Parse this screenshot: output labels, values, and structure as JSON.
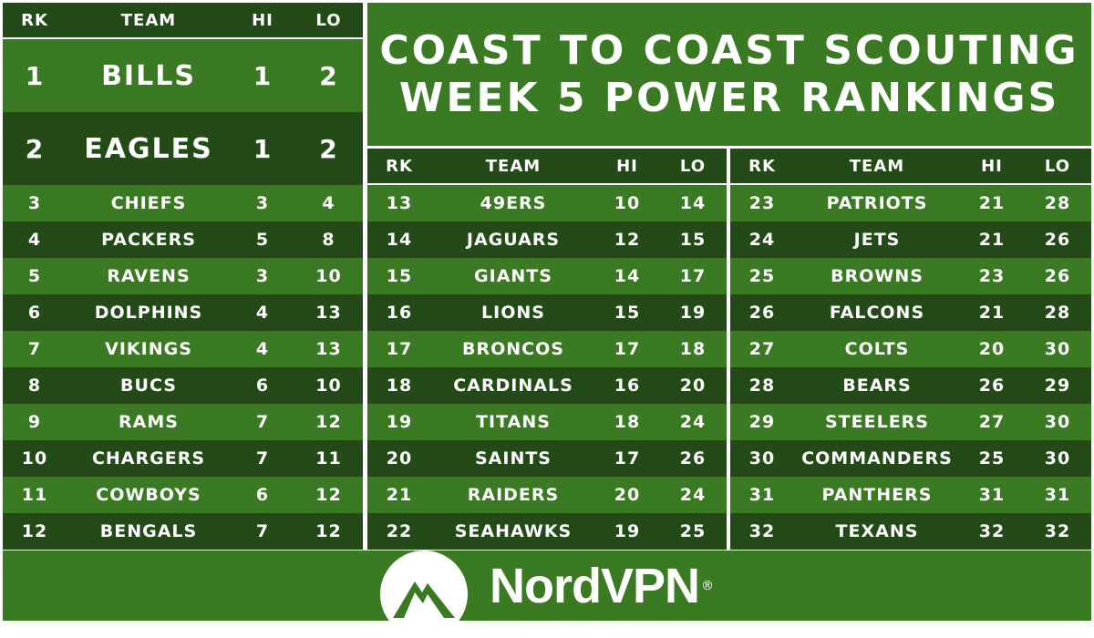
{
  "title": {
    "line1": "Coast to Coast Scouting",
    "line2": "Week 5 Power Rankings"
  },
  "columns": {
    "rank": "RK",
    "team": "TEAM",
    "hi": "HI",
    "lo": "LO"
  },
  "tables": [
    {
      "rows": [
        {
          "rk": "1",
          "team": "Bills",
          "hi": "1",
          "lo": "2"
        },
        {
          "rk": "2",
          "team": "Eagles",
          "hi": "1",
          "lo": "2"
        },
        {
          "rk": "3",
          "team": "Chiefs",
          "hi": "3",
          "lo": "4"
        },
        {
          "rk": "4",
          "team": "Packers",
          "hi": "5",
          "lo": "8"
        },
        {
          "rk": "5",
          "team": "Ravens",
          "hi": "3",
          "lo": "10"
        },
        {
          "rk": "6",
          "team": "Dolphins",
          "hi": "4",
          "lo": "13"
        },
        {
          "rk": "7",
          "team": "Vikings",
          "hi": "4",
          "lo": "13"
        },
        {
          "rk": "8",
          "team": "Bucs",
          "hi": "6",
          "lo": "10"
        },
        {
          "rk": "9",
          "team": "Rams",
          "hi": "7",
          "lo": "12"
        },
        {
          "rk": "10",
          "team": "Chargers",
          "hi": "7",
          "lo": "11"
        },
        {
          "rk": "11",
          "team": "Cowboys",
          "hi": "6",
          "lo": "12"
        },
        {
          "rk": "12",
          "team": "Bengals",
          "hi": "7",
          "lo": "12"
        }
      ]
    },
    {
      "rows": [
        {
          "rk": "13",
          "team": "49ers",
          "hi": "10",
          "lo": "14"
        },
        {
          "rk": "14",
          "team": "Jaguars",
          "hi": "12",
          "lo": "15"
        },
        {
          "rk": "15",
          "team": "Giants",
          "hi": "14",
          "lo": "17"
        },
        {
          "rk": "16",
          "team": "Lions",
          "hi": "15",
          "lo": "19"
        },
        {
          "rk": "17",
          "team": "Broncos",
          "hi": "17",
          "lo": "18"
        },
        {
          "rk": "18",
          "team": "Cardinals",
          "hi": "16",
          "lo": "20"
        },
        {
          "rk": "19",
          "team": "Titans",
          "hi": "18",
          "lo": "24"
        },
        {
          "rk": "20",
          "team": "Saints",
          "hi": "17",
          "lo": "26"
        },
        {
          "rk": "21",
          "team": "Raiders",
          "hi": "20",
          "lo": "24"
        },
        {
          "rk": "22",
          "team": "Seahawks",
          "hi": "19",
          "lo": "25"
        }
      ]
    },
    {
      "rows": [
        {
          "rk": "23",
          "team": "Patriots",
          "hi": "21",
          "lo": "28"
        },
        {
          "rk": "24",
          "team": "Jets",
          "hi": "21",
          "lo": "26"
        },
        {
          "rk": "25",
          "team": "Browns",
          "hi": "23",
          "lo": "26"
        },
        {
          "rk": "26",
          "team": "Falcons",
          "hi": "21",
          "lo": "28"
        },
        {
          "rk": "27",
          "team": "Colts",
          "hi": "20",
          "lo": "30"
        },
        {
          "rk": "28",
          "team": "Bears",
          "hi": "26",
          "lo": "29"
        },
        {
          "rk": "29",
          "team": "Steelers",
          "hi": "27",
          "lo": "30"
        },
        {
          "rk": "30",
          "team": "Commanders",
          "hi": "25",
          "lo": "30"
        },
        {
          "rk": "31",
          "team": "Panthers",
          "hi": "31",
          "lo": "31"
        },
        {
          "rk": "32",
          "team": "Texans",
          "hi": "32",
          "lo": "32"
        }
      ]
    }
  ],
  "footer": {
    "brand": "NordVPN",
    "registered": "®",
    "logo_icon": "nordvpn-mountain-icon"
  },
  "colors": {
    "dark_row": "#244a18",
    "light_row": "#3a7a22",
    "text": "#ffffff"
  }
}
